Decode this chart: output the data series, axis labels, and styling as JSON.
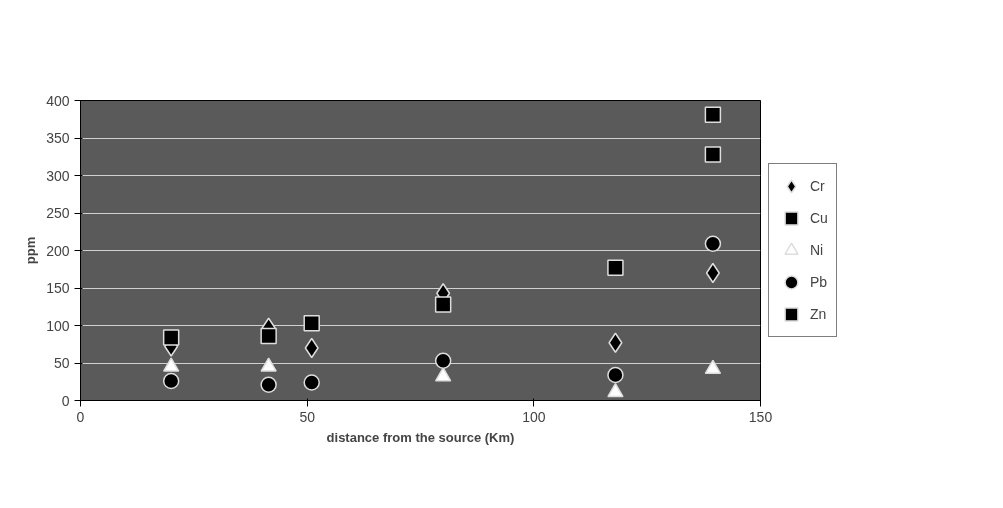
{
  "chart_data": {
    "type": "scatter",
    "xlabel": "distance from the source (Km)",
    "ylabel": "ppm",
    "xlim": [
      0,
      150
    ],
    "xticks": [
      0,
      50,
      100,
      150
    ],
    "ylim": [
      0,
      400
    ],
    "yticks": [
      0,
      50,
      100,
      150,
      200,
      250,
      300,
      350,
      400
    ],
    "grid": "y",
    "legend": "right",
    "x": [
      20,
      41.5,
      51,
      80,
      118,
      139.5
    ],
    "series": [
      {
        "name": "Cr",
        "color": "#000000",
        "marker": "diamond",
        "values": [
          72,
          97,
          70,
          143,
          77,
          170
        ]
      },
      {
        "name": "Cu",
        "color": "#000000",
        "marker": "square",
        "values": [
          null,
          null,
          103,
          null,
          177,
          328
        ]
      },
      {
        "name": "Ni",
        "color": "#ffffff",
        "marker": "triangle",
        "values": [
          45,
          45,
          null,
          32,
          11,
          42
        ]
      },
      {
        "name": "Pb",
        "color": "#000000",
        "marker": "circle",
        "values": [
          26,
          21,
          24,
          53,
          34,
          209
        ]
      },
      {
        "name": "Zn",
        "color": "#000000",
        "marker": "square",
        "values": [
          84,
          86,
          null,
          128,
          null,
          381
        ]
      }
    ]
  }
}
